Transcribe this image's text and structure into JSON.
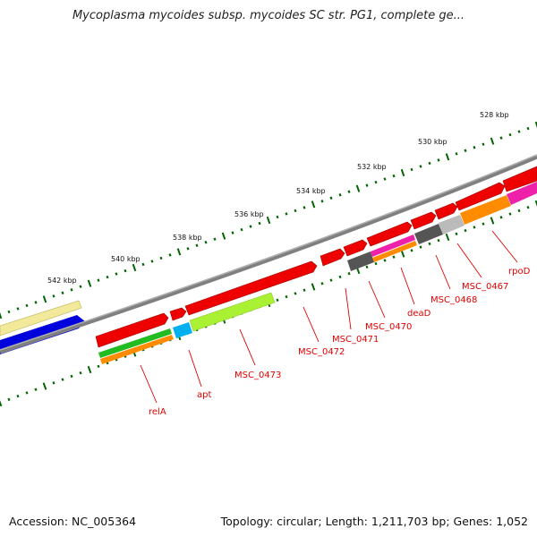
{
  "title": "Mycoplasma mycoides subsp. mycoides SC str. PG1, complete ge...",
  "footer": {
    "accession": "Accession: NC_005364",
    "stats": "Topology: circular; Length: 1,211,703 bp; Genes: 1,052"
  },
  "ruler_labels": [
    "528 kbp",
    "530 kbp",
    "532 kbp",
    "534 kbp",
    "536 kbp",
    "538 kbp",
    "540 kbp",
    "542 kbp"
  ],
  "gene_labels": [
    "rpoD",
    "MSC_0467",
    "MSC_0468",
    "deaD",
    "MSC_0470",
    "MSC_0471",
    "MSC_0472",
    "MSC_0473",
    "apt",
    "relA"
  ],
  "colors": {
    "backbone": "#808080",
    "forward_cds": "#ee0000",
    "label_red": "#e00000",
    "tick_green": "#006400",
    "pale_yellow": "#f2ea9a",
    "blue": "#0000dd",
    "green": "#22bb22",
    "orange": "#ff8c00",
    "cyan": "#00b0f0",
    "lime": "#aaf033",
    "magenta": "#ee22aa",
    "dark_gray": "#555555",
    "light_gray": "#bbbbbb"
  }
}
